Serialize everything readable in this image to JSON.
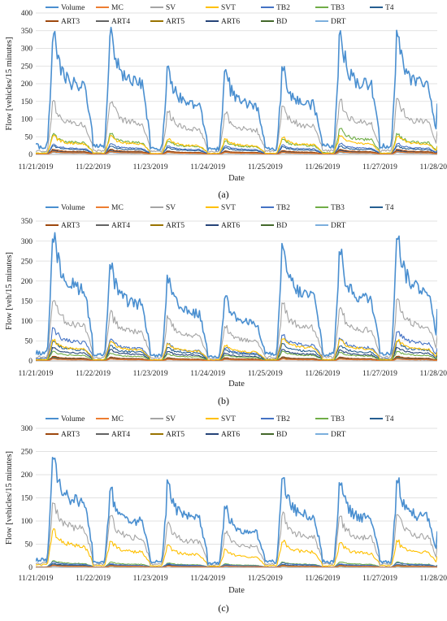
{
  "chart_data": [
    {
      "type": "line",
      "panel": "(a)",
      "title": "",
      "xlabel": "Date",
      "ylabel": "Flow [vehicles/15 minutes]",
      "ylim": [
        0,
        400
      ],
      "yticks": [
        0,
        50,
        100,
        150,
        200,
        250,
        300,
        350,
        400
      ],
      "xticks": [
        "11/21/2019",
        "11/22/2019",
        "11/23/2019",
        "11/24/2019",
        "11/25/2019",
        "11/26/2019",
        "11/27/2019",
        "11/28/2019"
      ],
      "grid": true,
      "legend": "top",
      "series": [
        {
          "name": "Volume",
          "color": "#4a8fd0",
          "days": [
            350,
            360,
            255,
            250,
            255,
            355,
            360
          ]
        },
        {
          "name": "MC",
          "color": "#ed7d31",
          "days": [
            8,
            8,
            6,
            6,
            6,
            8,
            8
          ]
        },
        {
          "name": "SV",
          "color": "#a5a5a5",
          "days": [
            155,
            160,
            130,
            125,
            145,
            160,
            165
          ]
        },
        {
          "name": "SVT",
          "color": "#ffc000",
          "days": [
            55,
            55,
            45,
            45,
            50,
            55,
            55
          ]
        },
        {
          "name": "TB2",
          "color": "#4472c4",
          "days": [
            30,
            32,
            25,
            25,
            28,
            32,
            32
          ]
        },
        {
          "name": "TB3",
          "color": "#70ad47",
          "days": [
            60,
            60,
            40,
            40,
            45,
            75,
            60
          ]
        },
        {
          "name": "T4",
          "color": "#255e91",
          "days": [
            25,
            25,
            20,
            20,
            22,
            25,
            25
          ]
        },
        {
          "name": "ART3",
          "color": "#9e480e",
          "days": [
            15,
            15,
            10,
            10,
            12,
            15,
            15
          ]
        },
        {
          "name": "ART4",
          "color": "#636363",
          "days": [
            10,
            10,
            8,
            8,
            8,
            10,
            10
          ]
        },
        {
          "name": "ART5",
          "color": "#997300",
          "days": [
            8,
            8,
            6,
            6,
            6,
            8,
            8
          ]
        },
        {
          "name": "ART6",
          "color": "#264478",
          "days": [
            12,
            12,
            10,
            10,
            10,
            12,
            12
          ]
        },
        {
          "name": "BD",
          "color": "#43682b",
          "days": [
            10,
            10,
            8,
            8,
            8,
            10,
            10
          ]
        },
        {
          "name": "DRT",
          "color": "#7cafdd",
          "days": [
            6,
            6,
            5,
            5,
            5,
            6,
            6
          ]
        }
      ]
    },
    {
      "type": "line",
      "panel": "(b)",
      "title": "",
      "xlabel": "Date",
      "ylabel": "Flow [veh/15 minutes]",
      "ylim": [
        0,
        350
      ],
      "yticks": [
        0,
        50,
        100,
        150,
        200,
        250,
        300,
        350
      ],
      "xticks": [
        "11/21/2019",
        "11/22/2019",
        "11/23/2019",
        "11/24/2019",
        "11/25/2019",
        "11/26/2019",
        "11/27/2019",
        "11/28/2019"
      ],
      "grid": true,
      "legend": "top",
      "series": [
        {
          "name": "Volume",
          "color": "#4a8fd0",
          "days": [
            330,
            255,
            215,
            170,
            295,
            280,
            325
          ]
        },
        {
          "name": "MC",
          "color": "#ed7d31",
          "days": [
            5,
            5,
            4,
            4,
            5,
            5,
            5
          ]
        },
        {
          "name": "SV",
          "color": "#a5a5a5",
          "days": [
            160,
            130,
            115,
            90,
            150,
            140,
            160
          ]
        },
        {
          "name": "SVT",
          "color": "#ffc000",
          "days": [
            55,
            50,
            45,
            40,
            60,
            55,
            55
          ]
        },
        {
          "name": "TB2",
          "color": "#4472c4",
          "days": [
            85,
            55,
            45,
            35,
            70,
            60,
            80
          ]
        },
        {
          "name": "TB3",
          "color": "#70ad47",
          "days": [
            25,
            20,
            18,
            15,
            25,
            22,
            25
          ]
        },
        {
          "name": "T4",
          "color": "#255e91",
          "days": [
            50,
            40,
            35,
            30,
            45,
            40,
            50
          ]
        },
        {
          "name": "ART3",
          "color": "#9e480e",
          "days": [
            12,
            10,
            8,
            8,
            10,
            10,
            12
          ]
        },
        {
          "name": "ART4",
          "color": "#636363",
          "days": [
            8,
            8,
            6,
            6,
            8,
            8,
            8
          ]
        },
        {
          "name": "ART5",
          "color": "#997300",
          "days": [
            6,
            6,
            5,
            5,
            6,
            6,
            6
          ]
        },
        {
          "name": "ART6",
          "color": "#264478",
          "days": [
            35,
            30,
            25,
            20,
            30,
            28,
            35
          ]
        },
        {
          "name": "BD",
          "color": "#43682b",
          "days": [
            10,
            8,
            8,
            6,
            10,
            8,
            10
          ]
        },
        {
          "name": "DRT",
          "color": "#7cafdd",
          "days": [
            5,
            5,
            4,
            4,
            5,
            5,
            5
          ]
        }
      ]
    },
    {
      "type": "line",
      "panel": "(c)",
      "title": "",
      "xlabel": "Date",
      "ylabel": "Flow [vehicles/15 minutes]",
      "ylim": [
        0,
        300
      ],
      "yticks": [
        0,
        50,
        100,
        150,
        200,
        250,
        300
      ],
      "xticks": [
        "11/21/2019",
        "11/22/2019",
        "11/23/2019",
        "11/24/2019",
        "11/25/2019",
        "11/26/2019",
        "11/27/2019",
        "11/28/2019"
      ],
      "grid": true,
      "legend": "top",
      "series": [
        {
          "name": "Volume",
          "color": "#4a8fd0",
          "days": [
            255,
            180,
            190,
            135,
            200,
            190,
            195
          ]
        },
        {
          "name": "MC",
          "color": "#ed7d31",
          "days": [
            4,
            4,
            3,
            3,
            4,
            4,
            4
          ]
        },
        {
          "name": "SV",
          "color": "#a5a5a5",
          "days": [
            150,
            115,
            100,
            80,
            120,
            115,
            120
          ]
        },
        {
          "name": "SVT",
          "color": "#ffc000",
          "days": [
            85,
            60,
            50,
            40,
            60,
            55,
            60
          ]
        },
        {
          "name": "TB2",
          "color": "#4472c4",
          "days": [
            12,
            8,
            8,
            6,
            10,
            8,
            10
          ]
        },
        {
          "name": "TB3",
          "color": "#70ad47",
          "days": [
            15,
            12,
            10,
            8,
            12,
            12,
            12
          ]
        },
        {
          "name": "T4",
          "color": "#255e91",
          "days": [
            8,
            6,
            6,
            5,
            6,
            6,
            6
          ]
        },
        {
          "name": "ART3",
          "color": "#9e480e",
          "days": [
            5,
            4,
            4,
            3,
            4,
            4,
            4
          ]
        },
        {
          "name": "ART4",
          "color": "#636363",
          "days": [
            4,
            4,
            3,
            3,
            4,
            4,
            4
          ]
        },
        {
          "name": "ART5",
          "color": "#997300",
          "days": [
            4,
            3,
            3,
            3,
            3,
            3,
            3
          ]
        },
        {
          "name": "ART6",
          "color": "#264478",
          "days": [
            5,
            4,
            4,
            3,
            4,
            4,
            4
          ]
        },
        {
          "name": "BD",
          "color": "#43682b",
          "days": [
            8,
            6,
            6,
            5,
            6,
            6,
            6
          ]
        },
        {
          "name": "DRT",
          "color": "#7cafdd",
          "days": [
            3,
            3,
            3,
            2,
            3,
            3,
            3
          ]
        }
      ]
    }
  ]
}
